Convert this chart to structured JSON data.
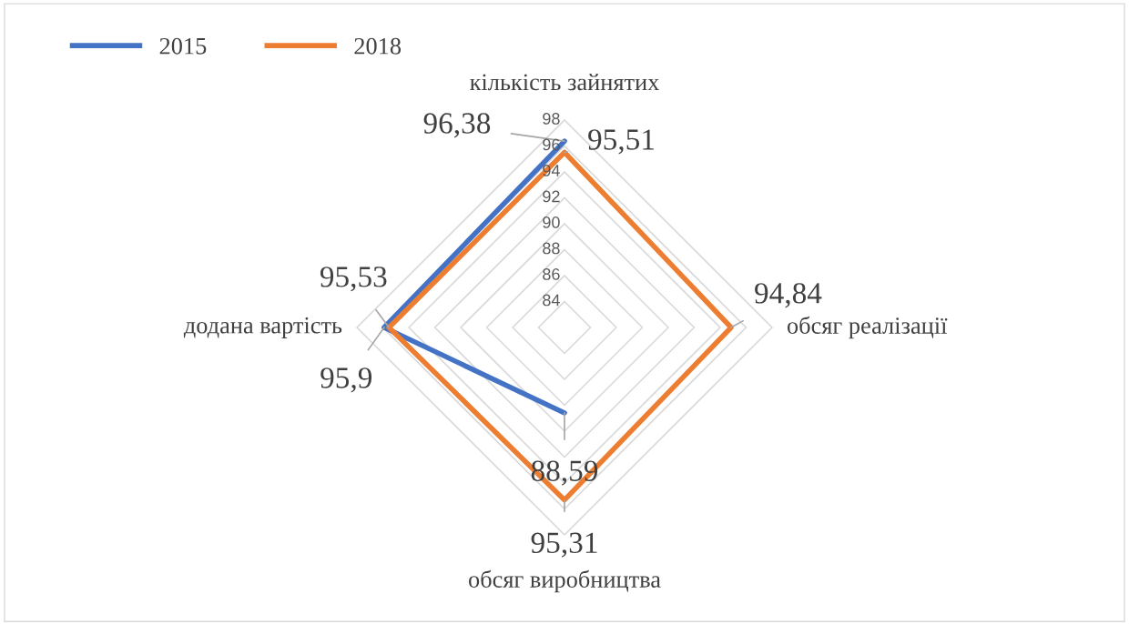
{
  "chart_data": {
    "type": "radar",
    "categories": [
      "кількість зайнятих",
      "обсяг реалізації",
      "обсяг виробництва",
      "додана вартість"
    ],
    "series": [
      {
        "name": "2015",
        "color": "#4472c4",
        "values": [
          96.38,
          null,
          88.59,
          95.9
        ],
        "value_labels": [
          "96,38",
          null,
          "88,59",
          "95,9"
        ]
      },
      {
        "name": "2018",
        "color": "#ed7d31",
        "values": [
          95.51,
          94.84,
          95.31,
          95.53
        ],
        "value_labels": [
          "95,51",
          "94,84",
          "95,31",
          "95,53"
        ]
      }
    ],
    "ylim": [
      82,
      98
    ],
    "yticks": [
      84,
      86,
      88,
      90,
      92,
      94,
      96,
      98
    ],
    "legend": "top left",
    "marker": "none",
    "line_style": "solid",
    "grid": true
  }
}
